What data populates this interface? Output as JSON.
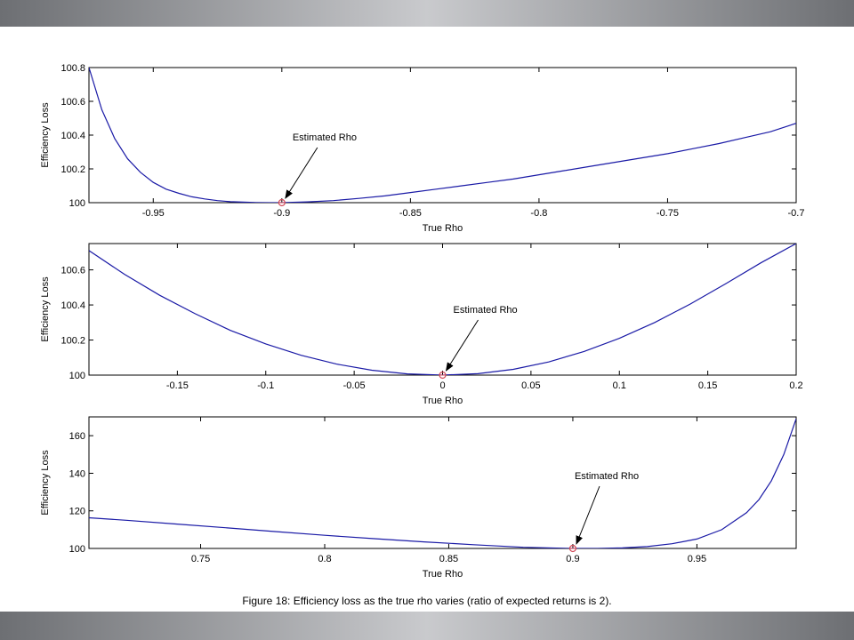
{
  "caption": "Figure 18: Efficiency loss as the true rho varies (ratio of expected returns is 2).",
  "colors": {
    "line": "#1a1aa6",
    "marker": "#d24b5a",
    "axis": "#000000"
  },
  "chart_data": [
    {
      "type": "line",
      "xlabel": "True Rho",
      "ylabel": "Efficiency Loss",
      "xlim": [
        -0.975,
        -0.7
      ],
      "ylim": [
        100,
        100.8
      ],
      "xticks": [
        -0.95,
        -0.9,
        -0.85,
        -0.8,
        -0.75,
        -0.7
      ],
      "xtick_labels": [
        "-0.95",
        "-0.9",
        "-0.85",
        "-0.8",
        "-0.75",
        "-0.7"
      ],
      "yticks": [
        100,
        100.2,
        100.4,
        100.6,
        100.8
      ],
      "ytick_labels": [
        "100",
        "100.2",
        "100.4",
        "100.6",
        "100.8"
      ],
      "series": [
        {
          "x": [
            -0.975,
            -0.97,
            -0.965,
            -0.96,
            -0.955,
            -0.95,
            -0.945,
            -0.94,
            -0.935,
            -0.93,
            -0.925,
            -0.92,
            -0.915,
            -0.91,
            -0.905,
            -0.9,
            -0.89,
            -0.88,
            -0.87,
            -0.86,
            -0.85,
            -0.84,
            -0.83,
            -0.82,
            -0.81,
            -0.8,
            -0.79,
            -0.78,
            -0.77,
            -0.76,
            -0.75,
            -0.74,
            -0.73,
            -0.72,
            -0.71,
            -0.7
          ],
          "y": [
            100.8,
            100.55,
            100.38,
            100.26,
            100.18,
            100.12,
            100.08,
            100.055,
            100.035,
            100.022,
            100.012,
            100.006,
            100.003,
            100.001,
            100.0,
            100.0,
            100.005,
            100.012,
            100.025,
            100.04,
            100.06,
            100.08,
            100.1,
            100.12,
            100.14,
            100.165,
            100.19,
            100.215,
            100.24,
            100.265,
            100.29,
            100.32,
            100.35,
            100.385,
            100.42,
            100.47
          ]
        }
      ],
      "marker": {
        "x": -0.9,
        "y": 100
      },
      "annotation": {
        "text": "Estimated Rho",
        "x": -0.9,
        "y": 100
      }
    },
    {
      "type": "line",
      "xlabel": "True Rho",
      "ylabel": "Efficiency Loss",
      "xlim": [
        -0.2,
        0.2
      ],
      "ylim": [
        100,
        100.75
      ],
      "xticks": [
        -0.15,
        -0.1,
        -0.05,
        0,
        0.05,
        0.1,
        0.15,
        0.2
      ],
      "xtick_labels": [
        "-0.15",
        "-0.1",
        "-0.05",
        "0",
        "0.05",
        "0.1",
        "0.15",
        "0.2"
      ],
      "yticks": [
        100,
        100.2,
        100.4,
        100.6
      ],
      "ytick_labels": [
        "100",
        "100.2",
        "100.4",
        "100.6"
      ],
      "series": [
        {
          "x": [
            -0.2,
            -0.18,
            -0.16,
            -0.14,
            -0.12,
            -0.1,
            -0.08,
            -0.06,
            -0.04,
            -0.02,
            0,
            0.02,
            0.04,
            0.06,
            0.08,
            0.1,
            0.12,
            0.14,
            0.16,
            0.18,
            0.2
          ],
          "y": [
            100.71,
            100.575,
            100.455,
            100.35,
            100.255,
            100.178,
            100.113,
            100.063,
            100.028,
            100.007,
            100.0,
            100.008,
            100.033,
            100.075,
            100.135,
            100.21,
            100.3,
            100.405,
            100.52,
            100.64,
            100.75
          ]
        }
      ],
      "marker": {
        "x": 0,
        "y": 100
      },
      "annotation": {
        "text": "Estimated Rho",
        "x": 0,
        "y": 100
      }
    },
    {
      "type": "line",
      "xlabel": "True Rho",
      "ylabel": "Efficiency Loss",
      "xlim": [
        0.705,
        0.99
      ],
      "ylim": [
        100,
        170
      ],
      "xticks": [
        0.75,
        0.8,
        0.85,
        0.9,
        0.95
      ],
      "xtick_labels": [
        "0.75",
        "0.8",
        "0.85",
        "0.9",
        "0.95"
      ],
      "yticks": [
        100,
        120,
        140,
        160
      ],
      "ytick_labels": [
        "100",
        "120",
        "140",
        "160"
      ],
      "series": [
        {
          "x": [
            0.705,
            0.72,
            0.74,
            0.76,
            0.78,
            0.8,
            0.82,
            0.84,
            0.86,
            0.88,
            0.9,
            0.91,
            0.92,
            0.93,
            0.94,
            0.95,
            0.96,
            0.97,
            0.975,
            0.98,
            0.985,
            0.99
          ],
          "y": [
            116.3,
            115,
            113,
            111,
            109,
            107,
            105.2,
            103.5,
            102,
            100.6,
            100.0,
            100.0,
            100.3,
            101,
            102.5,
            105,
            110,
            119,
            126,
            136,
            150,
            169
          ]
        }
      ],
      "marker": {
        "x": 0.9,
        "y": 100
      },
      "annotation": {
        "text": "Estimated Rho",
        "x": 0.9,
        "y": 100
      }
    }
  ]
}
